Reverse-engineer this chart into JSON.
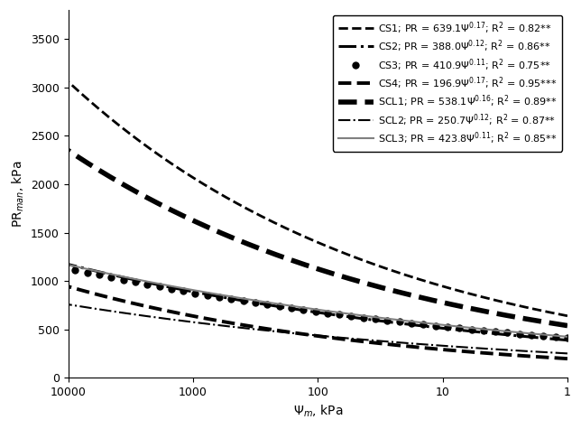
{
  "curves": [
    {
      "label": "CS1; PR = 639.1Ψ$^{0.17}$; R$^{2}$ = 0.82**",
      "A": 639.1,
      "b": 0.17,
      "linestyle": "--",
      "color": "black",
      "linewidth": 2.0,
      "marker": "None",
      "markersize": 0
    },
    {
      "label": "CS2; PR = 388.0Ψ$^{0.12}$; R$^{2}$ = 0.86**",
      "A": 388.0,
      "b": 0.12,
      "linestyle": "-.",
      "color": "black",
      "linewidth": 2.2,
      "marker": "None",
      "markersize": 0
    },
    {
      "label": "CS3; PR = 410.9Ψ$^{0.11}$; R$^{2}$ = 0.75**",
      "A": 410.9,
      "b": 0.11,
      "linestyle": "None",
      "color": "black",
      "linewidth": 1.5,
      "marker": "o",
      "markersize": 5
    },
    {
      "label": "CS4; PR = 196.9Ψ$^{0.17}$; R$^{2}$ = 0.95***",
      "A": 196.9,
      "b": 0.17,
      "linestyle": "--",
      "color": "black",
      "linewidth": 2.8,
      "marker": "None",
      "markersize": 0
    },
    {
      "label": "SCL1; PR = 538.1Ψ$^{0.16}$; R$^{2}$ = 0.89**",
      "A": 538.1,
      "b": 0.16,
      "linestyle": "--",
      "color": "black",
      "linewidth": 4.0,
      "marker": "None",
      "markersize": 0
    },
    {
      "label": "SCL2; PR = 250.7Ψ$^{0.12}$; R$^{2}$ = 0.87**",
      "A": 250.7,
      "b": 0.12,
      "linestyle": "-.",
      "color": "black",
      "linewidth": 1.5,
      "marker": "None",
      "markersize": 0
    },
    {
      "label": "SCL3; PR = 423.8Ψ$^{0.11}$; R$^{2}$ = 0.85**",
      "A": 423.8,
      "b": 0.11,
      "linestyle": "-",
      "color": "gray",
      "linewidth": 1.5,
      "marker": "None",
      "markersize": 0
    }
  ],
  "xmin": 1,
  "xmax": 10000,
  "ymin": 0,
  "ymax": 3800,
  "xlabel": "$\\Psi_{m}$, kPa",
  "ylabel": "PR$_{man}$, kPa",
  "yticks": [
    0,
    500,
    1000,
    1500,
    2000,
    2500,
    3000,
    3500
  ],
  "xticks": [
    10000,
    1000,
    100,
    10,
    1
  ],
  "xtick_labels": [
    "10000",
    "1000",
    "100",
    "10",
    "1"
  ],
  "legend_fontsize": 8.0,
  "axis_fontsize": 10,
  "tick_fontsize": 9
}
